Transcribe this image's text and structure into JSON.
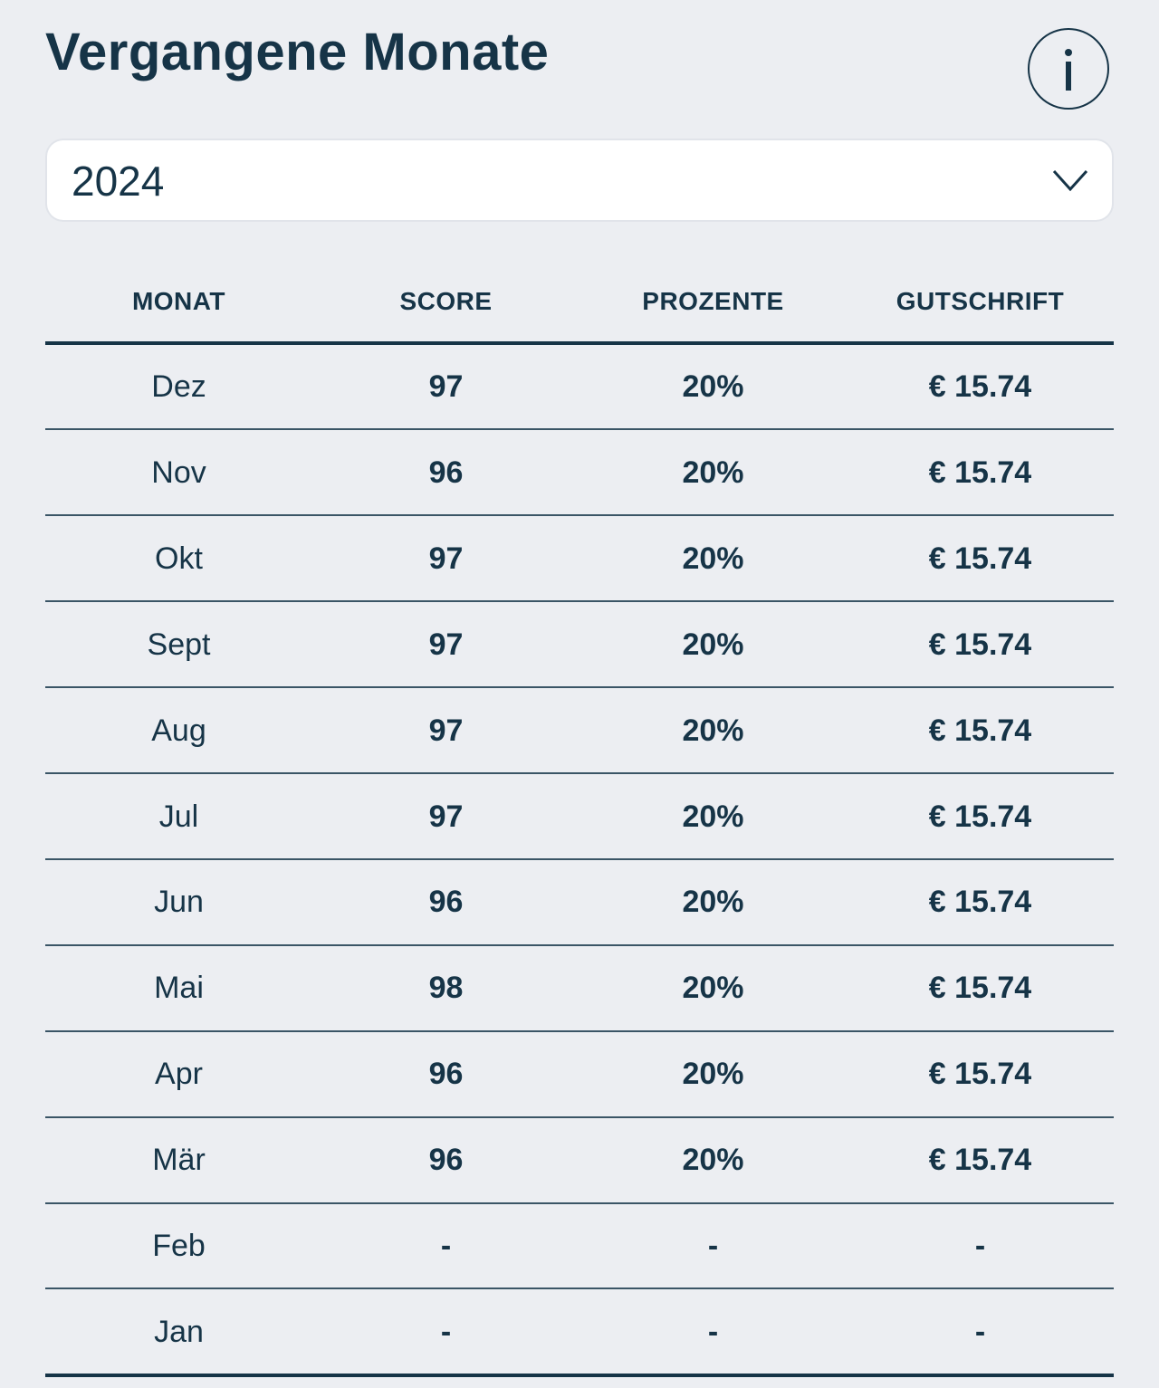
{
  "header": {
    "title": "Vergangene Monate"
  },
  "dropdown": {
    "value": "2024"
  },
  "table": {
    "columns": [
      "MONAT",
      "SCORE",
      "PROZENTE",
      "GUTSCHRIFT"
    ],
    "rows": [
      [
        "Dez",
        "97",
        "20%",
        "€ 15.74"
      ],
      [
        "Nov",
        "96",
        "20%",
        "€ 15.74"
      ],
      [
        "Okt",
        "97",
        "20%",
        "€ 15.74"
      ],
      [
        "Sept",
        "97",
        "20%",
        "€ 15.74"
      ],
      [
        "Aug",
        "97",
        "20%",
        "€ 15.74"
      ],
      [
        "Jul",
        "97",
        "20%",
        "€ 15.74"
      ],
      [
        "Jun",
        "96",
        "20%",
        "€ 15.74"
      ],
      [
        "Mai",
        "98",
        "20%",
        "€ 15.74"
      ],
      [
        "Apr",
        "96",
        "20%",
        "€ 15.74"
      ],
      [
        "Mär",
        "96",
        "20%",
        "€ 15.74"
      ],
      [
        "Feb",
        "-",
        "-",
        "-"
      ],
      [
        "Jan",
        "-",
        "-",
        "-"
      ]
    ]
  }
}
